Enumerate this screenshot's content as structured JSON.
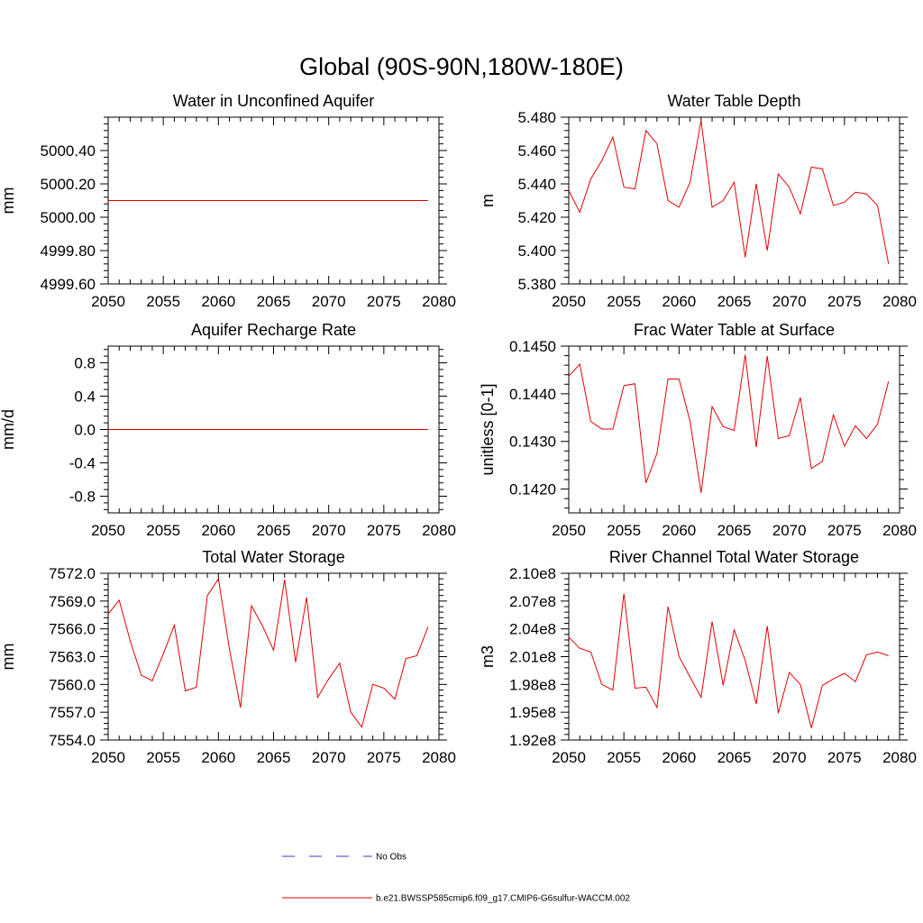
{
  "page": {
    "title": "Global (90S-90N,180W-180E)"
  },
  "legend": {
    "items": [
      {
        "label": "No Obs",
        "color": "#3b3bcc",
        "style": "dashed"
      },
      {
        "label": "b.e21.BWSSP585cmip6.f09_g17.CMIP6-G6sulfur-WACCM.002",
        "color": "#e60000",
        "style": "solid"
      }
    ]
  },
  "chart_data": [
    {
      "type": "line",
      "title": "Water in Unconfined Aquifer",
      "xlabel": "",
      "ylabel": "mm",
      "xlim": [
        2050,
        2080
      ],
      "ylim": [
        4999.6,
        5000.6
      ],
      "x_ticks": [
        "2050",
        "2055",
        "2060",
        "2065",
        "2070",
        "2075",
        "2080"
      ],
      "y_ticks": [
        "4999.60",
        "4999.80",
        "5000.00",
        "5000.20",
        "5000.40"
      ],
      "series": [
        {
          "color": "#e60000",
          "x": [
            2050,
            2079
          ],
          "values": [
            5000.1,
            5000.1
          ]
        }
      ]
    },
    {
      "type": "line",
      "title": "Water Table Depth",
      "xlabel": "",
      "ylabel": "m",
      "xlim": [
        2050,
        2080
      ],
      "ylim": [
        5.38,
        5.48
      ],
      "x_ticks": [
        "2050",
        "2055",
        "2060",
        "2065",
        "2070",
        "2075",
        "2080"
      ],
      "y_ticks": [
        "5.380",
        "5.400",
        "5.420",
        "5.440",
        "5.460",
        "5.480"
      ],
      "series": [
        {
          "color": "#e60000",
          "x": [
            2050,
            2051,
            2052,
            2053,
            2054,
            2055,
            2056,
            2057,
            2058,
            2059,
            2060,
            2061,
            2062,
            2063,
            2064,
            2065,
            2066,
            2067,
            2068,
            2069,
            2070,
            2071,
            2072,
            2073,
            2074,
            2075,
            2076,
            2077,
            2078,
            2079
          ],
          "values": [
            5.436,
            5.423,
            5.443,
            5.454,
            5.468,
            5.438,
            5.437,
            5.472,
            5.464,
            5.43,
            5.426,
            5.441,
            5.478,
            5.426,
            5.43,
            5.441,
            5.396,
            5.44,
            5.4,
            5.446,
            5.438,
            5.422,
            5.45,
            5.449,
            5.427,
            5.429,
            5.435,
            5.434,
            5.427,
            5.392
          ]
        }
      ]
    },
    {
      "type": "line",
      "title": "Aquifer Recharge Rate",
      "xlabel": "",
      "ylabel": "mm/d",
      "xlim": [
        2050,
        2080
      ],
      "ylim": [
        -1.0,
        1.0
      ],
      "x_ticks": [
        "2050",
        "2055",
        "2060",
        "2065",
        "2070",
        "2075",
        "2080"
      ],
      "y_ticks": [
        "-0.8",
        "-0.4",
        "0.0",
        "0.4",
        "0.8"
      ],
      "series": [
        {
          "color": "#e60000",
          "x": [
            2050,
            2079
          ],
          "values": [
            0.0,
            0.0
          ]
        }
      ]
    },
    {
      "type": "line",
      "title": "Frac Water Table at Surface",
      "xlabel": "",
      "ylabel": "unitless [0-1]",
      "xlim": [
        2050,
        2080
      ],
      "ylim": [
        0.1415,
        0.145
      ],
      "x_ticks": [
        "2050",
        "2055",
        "2060",
        "2065",
        "2070",
        "2075",
        "2080"
      ],
      "y_ticks": [
        "0.1420",
        "0.1430",
        "0.1440",
        "0.1450"
      ],
      "series": [
        {
          "color": "#e60000",
          "x": [
            2050,
            2051,
            2052,
            2053,
            2054,
            2055,
            2056,
            2057,
            2058,
            2059,
            2060,
            2061,
            2062,
            2063,
            2064,
            2065,
            2066,
            2067,
            2068,
            2069,
            2070,
            2071,
            2072,
            2073,
            2074,
            2075,
            2076,
            2077,
            2078,
            2079
          ],
          "values": [
            0.14437,
            0.14462,
            0.14342,
            0.14326,
            0.14326,
            0.14417,
            0.14421,
            0.14213,
            0.14275,
            0.14431,
            0.14431,
            0.14342,
            0.14192,
            0.14373,
            0.14331,
            0.14323,
            0.14482,
            0.14288,
            0.14479,
            0.14306,
            0.14312,
            0.14392,
            0.14243,
            0.14258,
            0.14356,
            0.1429,
            0.14333,
            0.14306,
            0.14336,
            0.14426
          ]
        }
      ]
    },
    {
      "type": "line",
      "title": "Total Water Storage",
      "xlabel": "",
      "ylabel": "mm",
      "xlim": [
        2050,
        2080
      ],
      "ylim": [
        7554.0,
        7572.0
      ],
      "x_ticks": [
        "2050",
        "2055",
        "2060",
        "2065",
        "2070",
        "2075",
        "2080"
      ],
      "y_ticks": [
        "7554.0",
        "7557.0",
        "7560.0",
        "7563.0",
        "7566.0",
        "7569.0",
        "7572.0"
      ],
      "series": [
        {
          "color": "#e60000",
          "x": [
            2050,
            2051,
            2052,
            2053,
            2054,
            2055,
            2056,
            2057,
            2058,
            2059,
            2060,
            2061,
            2062,
            2063,
            2064,
            2065,
            2066,
            2067,
            2068,
            2069,
            2070,
            2071,
            2072,
            2073,
            2074,
            2075,
            2076,
            2077,
            2078,
            2079
          ],
          "values": [
            7567.6,
            7569.1,
            7564.7,
            7561.0,
            7560.4,
            7563.3,
            7566.4,
            7559.3,
            7559.7,
            7569.6,
            7571.4,
            7563.8,
            7557.5,
            7568.5,
            7566.3,
            7563.7,
            7571.3,
            7562.4,
            7569.4,
            7558.6,
            7560.6,
            7562.3,
            7557.0,
            7555.4,
            7560.0,
            7559.6,
            7558.4,
            7562.8,
            7563.1,
            7566.2
          ]
        }
      ]
    },
    {
      "type": "line",
      "title": "River Channel Total Water Storage",
      "xlabel": "",
      "ylabel": "m3",
      "xlim": [
        2050,
        2080
      ],
      "ylim": [
        192000000.0,
        210000000.0
      ],
      "x_ticks": [
        "2050",
        "2055",
        "2060",
        "2065",
        "2070",
        "2075",
        "2080"
      ],
      "y_ticks": [
        "1.92e8",
        "1.95e8",
        "1.98e8",
        "2.01e8",
        "2.04e8",
        "2.07e8",
        "2.10e8"
      ],
      "series": [
        {
          "color": "#e60000",
          "x": [
            2050,
            2051,
            2052,
            2053,
            2054,
            2055,
            2056,
            2057,
            2058,
            2059,
            2060,
            2061,
            2062,
            2063,
            2064,
            2065,
            2066,
            2067,
            2068,
            2069,
            2070,
            2071,
            2072,
            2073,
            2074,
            2075,
            2076,
            2077,
            2078,
            2079
          ],
          "values": [
            203100000.0,
            201900000.0,
            201500000.0,
            198000000.0,
            197400000.0,
            207800000.0,
            197600000.0,
            197700000.0,
            195500000.0,
            206400000.0,
            201000000.0,
            198800000.0,
            196600000.0,
            204800000.0,
            197900000.0,
            203900000.0,
            200600000.0,
            195900000.0,
            204300000.0,
            194900000.0,
            199300000.0,
            198000000.0,
            193300000.0,
            197900000.0,
            198600000.0,
            199200000.0,
            198300000.0,
            201200000.0,
            201500000.0,
            201100000.0
          ]
        }
      ]
    }
  ]
}
